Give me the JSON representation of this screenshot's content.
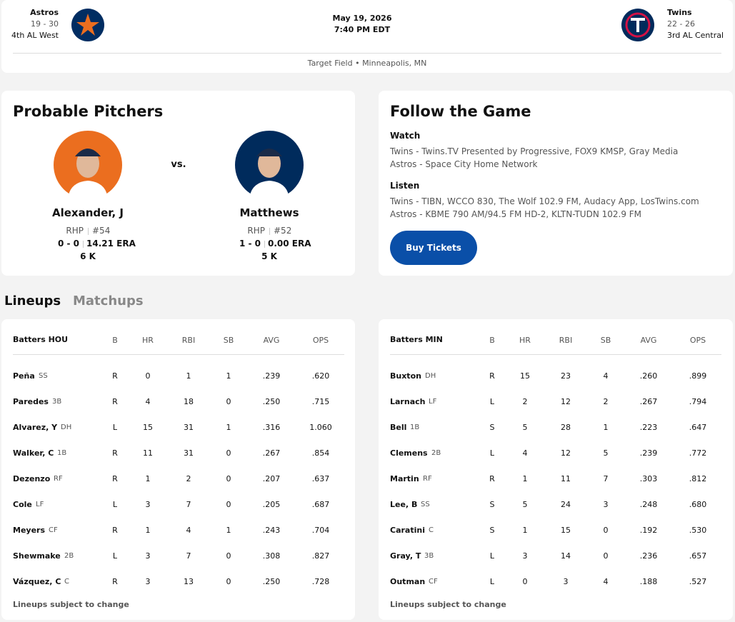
{
  "header": {
    "away": {
      "name": "Astros",
      "record": "19 - 30",
      "standing": "4th AL West"
    },
    "date": "May 19, 2026",
    "time": "7:40 PM EDT",
    "home": {
      "name": "Twins",
      "record": "22 - 26",
      "standing": "3rd AL Central"
    },
    "venue": "Target Field • Minneapolis, MN"
  },
  "pitchers": {
    "title": "Probable Pitchers",
    "vs": "vs.",
    "list": [
      {
        "name": "Alexander, J",
        "hand": "RHP",
        "number": "#54",
        "record": "0 - 0",
        "era": "14.21 ERA",
        "strikeouts": "6 K"
      },
      {
        "name": "Matthews",
        "hand": "RHP",
        "number": "#52",
        "record": "1 - 0",
        "era": "0.00 ERA",
        "strikeouts": "5 K"
      }
    ]
  },
  "follow": {
    "title": "Follow the Game",
    "watch_label": "Watch",
    "watch": [
      "Twins - Twins.TV Presented by Progressive, FOX9 KMSP, Gray Media",
      "Astros - Space City Home Network"
    ],
    "listen_label": "Listen",
    "listen": [
      "Twins - TIBN, WCCO 830, The Wolf 102.9 FM, Audacy App, LosTwins.com",
      "Astros - KBME 790 AM/94.5 FM HD-2, KLTN-TUDN 102.9 FM"
    ],
    "button": "Buy Tickets"
  },
  "tabs": [
    "Lineups",
    "Matchups"
  ],
  "lineups": [
    {
      "columns": [
        "Batters HOU",
        "B",
        "HR",
        "RBI",
        "SB",
        "AVG",
        "OPS"
      ],
      "rows": [
        [
          "Peña",
          "SS",
          "R",
          "0",
          "1",
          "1",
          ".239",
          ".620"
        ],
        [
          "Paredes",
          "3B",
          "R",
          "4",
          "18",
          "0",
          ".250",
          ".715"
        ],
        [
          "Alvarez, Y",
          "DH",
          "L",
          "15",
          "31",
          "1",
          ".316",
          "1.060"
        ],
        [
          "Walker, C",
          "1B",
          "R",
          "11",
          "31",
          "0",
          ".267",
          ".854"
        ],
        [
          "Dezenzo",
          "RF",
          "R",
          "1",
          "2",
          "0",
          ".207",
          ".637"
        ],
        [
          "Cole",
          "LF",
          "L",
          "3",
          "7",
          "0",
          ".205",
          ".687"
        ],
        [
          "Meyers",
          "CF",
          "R",
          "1",
          "4",
          "1",
          ".243",
          ".704"
        ],
        [
          "Shewmake",
          "2B",
          "L",
          "3",
          "7",
          "0",
          ".308",
          ".827"
        ],
        [
          "Vázquez, C",
          "C",
          "R",
          "3",
          "13",
          "0",
          ".250",
          ".728"
        ]
      ],
      "note": "Lineups subject to change"
    },
    {
      "columns": [
        "Batters MIN",
        "B",
        "HR",
        "RBI",
        "SB",
        "AVG",
        "OPS"
      ],
      "rows": [
        [
          "Buxton",
          "DH",
          "R",
          "15",
          "23",
          "4",
          ".260",
          ".899"
        ],
        [
          "Larnach",
          "LF",
          "L",
          "2",
          "12",
          "2",
          ".267",
          ".794"
        ],
        [
          "Bell",
          "1B",
          "S",
          "5",
          "28",
          "1",
          ".223",
          ".647"
        ],
        [
          "Clemens",
          "2B",
          "L",
          "4",
          "12",
          "5",
          ".239",
          ".772"
        ],
        [
          "Martin",
          "RF",
          "R",
          "1",
          "11",
          "7",
          ".303",
          ".812"
        ],
        [
          "Lee, B",
          "SS",
          "S",
          "5",
          "24",
          "3",
          ".248",
          ".680"
        ],
        [
          "Caratini",
          "C",
          "S",
          "1",
          "15",
          "0",
          ".192",
          ".530"
        ],
        [
          "Gray, T",
          "3B",
          "L",
          "3",
          "14",
          "0",
          ".236",
          ".657"
        ],
        [
          "Outman",
          "CF",
          "L",
          "0",
          "3",
          "4",
          ".188",
          ".527"
        ]
      ],
      "note": "Lineups subject to change"
    }
  ]
}
